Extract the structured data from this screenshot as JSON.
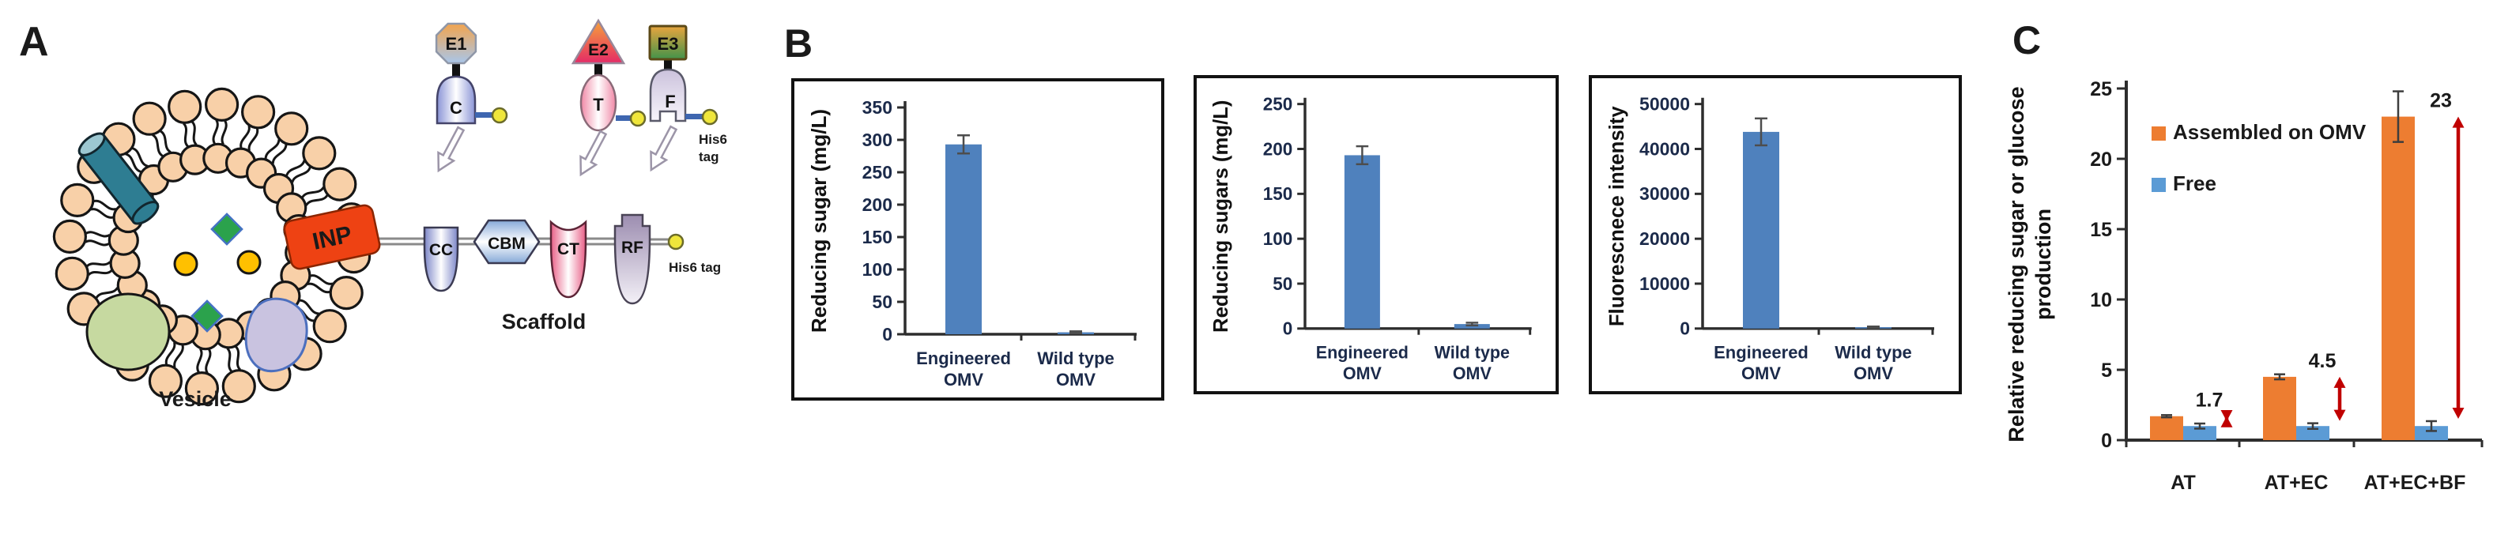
{
  "panels": {
    "a": {
      "label": "A",
      "vesicle_caption": "Vesicle",
      "scaffold_caption": "Scaffold",
      "inp": "INP",
      "cc": "CC",
      "cbm": "CBM",
      "ct": "CT",
      "rf": "RF",
      "his6_tag": "His6 tag",
      "his6_line1": "His6",
      "his6_line2": "tag",
      "e1": "E1",
      "e1_adapter": "C",
      "e2": "E2",
      "e2_adapter": "T",
      "e3": "E3",
      "e3_adapter": "F"
    },
    "b": {
      "label": "B"
    },
    "c": {
      "label": "C"
    }
  },
  "chart_data": [
    {
      "id": "reducing-sugar",
      "type": "bar",
      "ylabel": "Reducing sugar (mg/L)",
      "xlabel": "",
      "ylim": [
        0,
        350
      ],
      "ytick_interval": 50,
      "grid": false,
      "categories": [
        "Engineered\nOMV",
        "Wild type\nOMV"
      ],
      "values": [
        293,
        3
      ],
      "errors": [
        14,
        1.5
      ],
      "bar_color": "#4F81BD"
    },
    {
      "id": "reducing-sugars",
      "type": "bar",
      "ylabel": "Reducing sugars (mg/L)",
      "xlabel": "",
      "ylim": [
        0,
        250
      ],
      "ytick_interval": 50,
      "grid": false,
      "categories": [
        "Engineered\nOMV",
        "Wild type\nOMV"
      ],
      "values": [
        193,
        5
      ],
      "errors": [
        10,
        1.5
      ],
      "bar_color": "#4F81BD"
    },
    {
      "id": "fluorescence-intensity",
      "type": "bar",
      "ylabel": "Fluorescnece intensity",
      "xlabel": "",
      "ylim": [
        0,
        50000
      ],
      "ytick_interval": 10000,
      "grid": false,
      "categories": [
        "Engineered\nOMV",
        "Wild type\nOMV"
      ],
      "values": [
        43800,
        300
      ],
      "errors": [
        3000,
        150
      ],
      "bar_color": "#4F81BD"
    },
    {
      "id": "relative-production",
      "type": "grouped_bar",
      "ylabel": "Relative reducing sugar or glucose\nproduction",
      "xlabel": "",
      "ylim": [
        0,
        25
      ],
      "ytick_interval": 5,
      "grid": false,
      "legend_position": "upper-left",
      "categories": [
        "AT",
        "AT+EC",
        "AT+EC+BF"
      ],
      "series": [
        {
          "name": "Assembled on OMV",
          "color": "#ED7D31",
          "values": [
            1.7,
            4.5,
            23
          ],
          "errors": [
            0.08,
            0.18,
            1.8
          ]
        },
        {
          "name": "Free",
          "color": "#5B9BD5",
          "values": [
            1.0,
            1.0,
            1.0
          ],
          "errors": [
            0.18,
            0.2,
            0.35
          ]
        }
      ],
      "fold_annotations": [
        "1.7",
        "4.5",
        "23"
      ]
    }
  ],
  "colors": {
    "bar_blue": "#4F81BD",
    "bar_orange": "#ED7D31",
    "bar_blue_light": "#5B9BD5",
    "arrow_red": "#C00000",
    "axis": "#2d2d2d",
    "tick_text": "#1b2a4a",
    "label_text": "#1a1a1a",
    "lipid_head": "#F8D0A8",
    "inp_orange": "#EE4213",
    "diamond_green": "#2BA24C",
    "dot_yellow": "#FFC000",
    "teal_protein": "#2E7D92",
    "teal_protein_cap": "#9CC7D1",
    "green_protein": "#C6D9A0",
    "lavender_protein": "#C9C3E0",
    "his6_yellow": "#EFE63B",
    "connector_gray": "#8a8a8a"
  }
}
